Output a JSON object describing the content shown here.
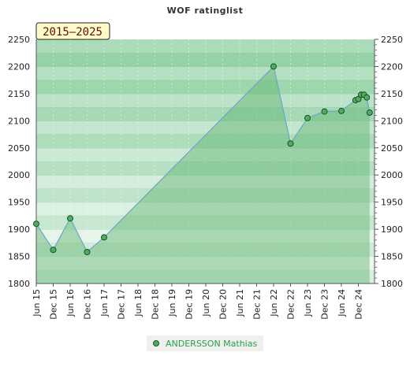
{
  "badge": "2015–2025",
  "colors": {
    "band_dark": "#7ec894",
    "band_light": "#f1f8f2",
    "area_fill": "#5fb46e",
    "line": "#6aa6c8",
    "marker_fill": "#4caf60",
    "marker_stroke": "#1e4d2a",
    "legend_text": "#2e9e4a"
  },
  "chart_data": {
    "type": "area",
    "title": "WOF ratinglist",
    "ylim": [
      1800,
      2250
    ],
    "y_ticks": [
      1800,
      1850,
      1900,
      1950,
      2000,
      2050,
      2100,
      2150,
      2200,
      2250
    ],
    "x_ticks": [
      "Jun 15",
      "Dec 15",
      "Jun 16",
      "Dec 16",
      "Jun 17",
      "Dec 17",
      "Jun 18",
      "Dec 18",
      "Jun 19",
      "Dec 19",
      "Jun 20",
      "Dec 20",
      "Jun 21",
      "Dec 21",
      "Jun 22",
      "Dec 22",
      "Jun 23",
      "Dec 23",
      "Jun 24",
      "Dec 24"
    ],
    "grid": true,
    "legend_position": "bottom",
    "series": [
      {
        "name": "ANDERSSON Mathias",
        "points": [
          {
            "x": "2015-06",
            "y": 1910
          },
          {
            "x": "2015-12",
            "y": 1862
          },
          {
            "x": "2016-06",
            "y": 1920
          },
          {
            "x": "2016-12",
            "y": 1858
          },
          {
            "x": "2017-06",
            "y": 1885
          },
          {
            "x": "2022-06",
            "y": 2200
          },
          {
            "x": "2022-12",
            "y": 2058
          },
          {
            "x": "2023-06",
            "y": 2105
          },
          {
            "x": "2023-12",
            "y": 2117
          },
          {
            "x": "2024-06",
            "y": 2118
          },
          {
            "x": "2024-11",
            "y": 2138
          },
          {
            "x": "2024-12",
            "y": 2140
          },
          {
            "x": "2025-01",
            "y": 2148
          },
          {
            "x": "2025-02",
            "y": 2148
          },
          {
            "x": "2025-03",
            "y": 2143
          },
          {
            "x": "2025-04",
            "y": 2115
          }
        ]
      }
    ]
  }
}
